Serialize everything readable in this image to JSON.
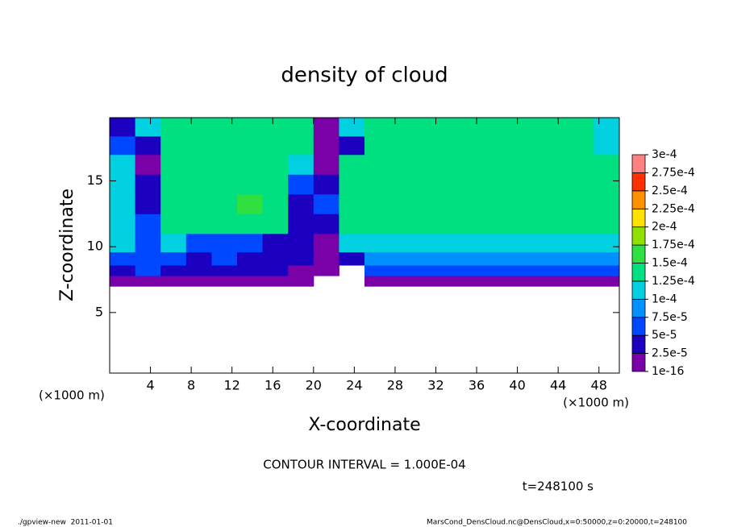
{
  "chart_data": {
    "type": "cells",
    "title": "density of cloud",
    "xlabel": "X-coordinate",
    "ylabel": "Z-coordinate",
    "x_unit": "(×1000 m)",
    "y_unit": "(×1000 m)",
    "contour_note": "CONTOUR INTERVAL = 1.000E-04",
    "time_note": "t=248100 s",
    "footer_left": "./gpview-new  2011-01-01",
    "footer_right": "MarsCond_DensCloud.nc@DensCloud,x=0:50000,z=0:20000,t=248100",
    "xlim": [
      0,
      50
    ],
    "ylim": [
      0.4,
      19.8
    ],
    "xticks": [
      4,
      8,
      12,
      16,
      20,
      24,
      28,
      32,
      36,
      40,
      44,
      48
    ],
    "yticks": [
      5,
      10,
      15
    ],
    "x_edges": [
      0,
      2.5,
      5,
      7.5,
      10,
      12.5,
      15,
      17.5,
      20,
      22.5,
      25,
      27.5,
      30,
      32.5,
      35,
      37.5,
      40,
      42.5,
      45,
      47.5,
      50
    ],
    "y_edges": [
      7,
      7.8,
      8.6,
      9.6,
      11,
      12.5,
      14,
      15.5,
      17,
      18.4,
      19.8
    ],
    "values": [
      [
        1e-05,
        1e-05,
        1e-05,
        1e-05,
        1e-05,
        1e-05,
        1e-05,
        1e-05,
        null,
        null,
        1e-05,
        1e-05,
        1e-05,
        1e-05,
        1e-05,
        1e-05,
        1e-05,
        1e-05,
        1e-05,
        1e-05
      ],
      [
        4e-05,
        5e-05,
        4e-05,
        3e-05,
        3e-05,
        4e-05,
        3e-05,
        2e-05,
        1e-05,
        null,
        6e-05,
        6e-05,
        6e-05,
        6e-05,
        6e-05,
        6e-05,
        6e-05,
        6e-05,
        6e-05,
        6e-05
      ],
      [
        6e-05,
        7e-05,
        5e-05,
        4e-05,
        5e-05,
        3e-05,
        4e-05,
        3e-05,
        2e-05,
        3e-05,
        8.5e-05,
        8.5e-05,
        8.5e-05,
        8.5e-05,
        8.5e-05,
        8.5e-05,
        8.5e-05,
        8.5e-05,
        8.5e-05,
        8.5e-05
      ],
      [
        0.000105,
        6e-05,
        0.00011,
        6e-05,
        6e-05,
        5e-05,
        4e-05,
        3e-05,
        2e-05,
        0.00011,
        0.00012,
        0.00012,
        0.00012,
        0.00012,
        0.00012,
        0.00012,
        0.00012,
        0.00012,
        0.00012,
        0.00012
      ],
      [
        0.00012,
        5e-05,
        0.00013,
        0.000135,
        0.00013,
        0.00013,
        0.00013,
        4e-05,
        3e-05,
        0.00013,
        0.00013,
        0.00013,
        0.00013,
        0.00013,
        0.00013,
        0.00013,
        0.00013,
        0.00013,
        0.00013,
        0.00013
      ],
      [
        0.00012,
        3e-05,
        0.000135,
        0.00014,
        0.000145,
        0.00015,
        0.000135,
        4e-05,
        5e-05,
        0.00013,
        0.00013,
        0.000135,
        0.000135,
        0.000135,
        0.000135,
        0.000135,
        0.000135,
        0.00013,
        0.00013,
        0.00013
      ],
      [
        0.00012,
        4e-05,
        0.000135,
        0.000145,
        0.000145,
        0.00014,
        0.000135,
        5e-05,
        3e-05,
        0.00013,
        0.00013,
        0.000135,
        0.000135,
        0.000135,
        0.000135,
        0.000135,
        0.000135,
        0.000135,
        0.00013,
        0.00013
      ],
      [
        0.00011,
        2e-05,
        0.000135,
        0.00014,
        0.00014,
        0.000135,
        0.00013,
        0.00012,
        2e-05,
        0.00013,
        0.00013,
        0.000135,
        0.000135,
        0.000135,
        0.000135,
        0.000135,
        0.000135,
        0.000135,
        0.00013,
        0.00013
      ],
      [
        5e-05,
        4e-05,
        0.00013,
        0.000135,
        0.000135,
        0.000135,
        0.00013,
        0.00013,
        1e-05,
        4e-05,
        0.00013,
        0.00013,
        0.00013,
        0.00013,
        0.00013,
        0.00013,
        0.00013,
        0.00013,
        0.00013,
        0.00012
      ],
      [
        3e-05,
        0.0001,
        0.00013,
        0.00013,
        0.00013,
        0.00013,
        0.00013,
        0.00013,
        1e-05,
        0.00012,
        0.00013,
        0.00013,
        0.00013,
        0.00013,
        0.00013,
        0.00013,
        0.00013,
        0.00013,
        0.00013,
        0.0001
      ]
    ],
    "levels": [
      {
        "value": 1e-16,
        "label": "1e-16"
      },
      {
        "value": 2.5e-05,
        "label": "2.5e-5"
      },
      {
        "value": 5e-05,
        "label": "5e-5"
      },
      {
        "value": 7.5e-05,
        "label": "7.5e-5"
      },
      {
        "value": 0.0001,
        "label": "1e-4"
      },
      {
        "value": 0.000125,
        "label": "1.25e-4"
      },
      {
        "value": 0.00015,
        "label": "1.5e-4"
      },
      {
        "value": 0.000175,
        "label": "1.75e-4"
      },
      {
        "value": 0.0002,
        "label": "2e-4"
      },
      {
        "value": 0.000225,
        "label": "2.25e-4"
      },
      {
        "value": 0.00025,
        "label": "2.5e-4"
      },
      {
        "value": 0.000275,
        "label": "2.75e-4"
      },
      {
        "value": 0.0003,
        "label": "3e-4"
      }
    ],
    "colors": [
      "#7a00a8",
      "#1c00c0",
      "#0048ff",
      "#0090ff",
      "#00d0e0",
      "#00e080",
      "#30e040",
      "#90e000",
      "#ffe000",
      "#ff9000",
      "#ff3000",
      "#ff8080"
    ]
  }
}
